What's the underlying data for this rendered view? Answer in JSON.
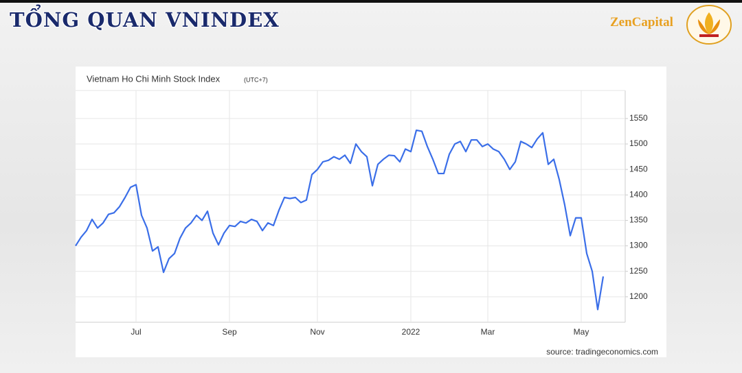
{
  "header": {
    "title": "TỔNG QUAN VNINDEX",
    "brand": "ZenCapital"
  },
  "chart_data": {
    "type": "line",
    "title": "Vietnam Ho Chi Minh Stock Index",
    "subtitle": "(UTC+7)",
    "source": "source: tradingeconomics.com",
    "categories": [
      null,
      null,
      null,
      null,
      null,
      null,
      null,
      null,
      null,
      null,
      null,
      "Jul",
      null,
      null,
      null,
      null,
      null,
      null,
      null,
      null,
      null,
      null,
      null,
      null,
      null,
      null,
      null,
      null,
      "Sep",
      null,
      null,
      null,
      null,
      null,
      null,
      null,
      null,
      null,
      null,
      null,
      null,
      null,
      null,
      null,
      "Nov",
      null,
      null,
      null,
      null,
      null,
      null,
      null,
      null,
      null,
      null,
      null,
      null,
      null,
      null,
      null,
      null,
      "2022",
      null,
      null,
      null,
      null,
      null,
      null,
      null,
      null,
      null,
      null,
      null,
      null,
      null,
      "Mar",
      null,
      null,
      null,
      null,
      null,
      null,
      null,
      null,
      null,
      null,
      null,
      null,
      null,
      null,
      null,
      null,
      "May",
      null,
      null,
      null,
      null
    ],
    "series": [
      {
        "name": "VNINDEX",
        "color": "#3a6ee8",
        "values": [
          1300,
          1317,
          1330,
          1352,
          1335,
          1345,
          1362,
          1365,
          1377,
          1395,
          1415,
          1420,
          1360,
          1335,
          1290,
          1298,
          1248,
          1275,
          1285,
          1315,
          1335,
          1345,
          1360,
          1350,
          1368,
          1325,
          1302,
          1325,
          1340,
          1338,
          1348,
          1345,
          1352,
          1348,
          1330,
          1345,
          1340,
          1370,
          1395,
          1393,
          1395,
          1385,
          1390,
          1440,
          1450,
          1465,
          1468,
          1475,
          1470,
          1478,
          1462,
          1500,
          1485,
          1475,
          1418,
          1460,
          1470,
          1478,
          1477,
          1465,
          1490,
          1485,
          1527,
          1525,
          1495,
          1470,
          1442,
          1442,
          1480,
          1500,
          1505,
          1485,
          1508,
          1508,
          1495,
          1500,
          1490,
          1485,
          1470,
          1450,
          1465,
          1505,
          1500,
          1493,
          1510,
          1522,
          1460,
          1470,
          1430,
          1380,
          1320,
          1355,
          1355,
          1285,
          1250,
          1175,
          1240
        ]
      }
    ],
    "ylim": [
      1150,
      1605
    ],
    "yticks": [
      1200,
      1250,
      1300,
      1350,
      1400,
      1450,
      1500,
      1550
    ],
    "grid": true
  }
}
